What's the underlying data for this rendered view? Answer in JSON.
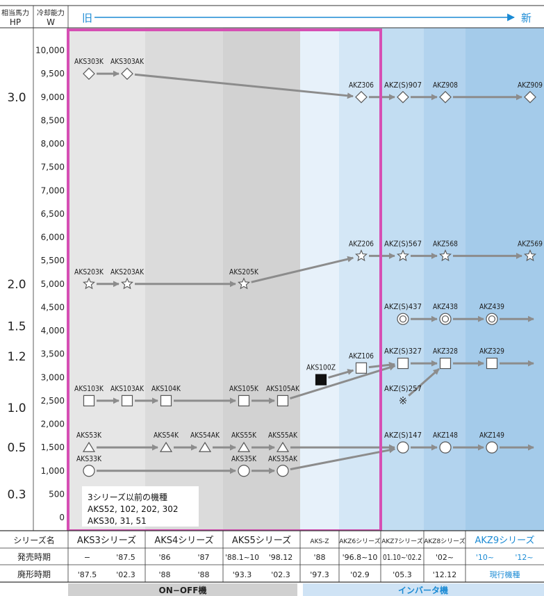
{
  "header": {
    "hp_label_1": "相当馬力",
    "hp_label_2": "HP",
    "w_label_1": "冷却能力",
    "w_label_2": "W",
    "old_label": "旧",
    "new_label": "新"
  },
  "y_axis_w": [
    "10,000",
    "9,500",
    "9,000",
    "8,500",
    "8,000",
    "7,500",
    "7,000",
    "6,500",
    "6,000",
    "5,500",
    "5,000",
    "4,500",
    "4,000",
    "3,500",
    "3,000",
    "2,500",
    "2,000",
    "1,500",
    "1,000",
    "500",
    "0"
  ],
  "y_axis_hp": [
    {
      "label": "3.0",
      "w": 9000
    },
    {
      "label": "2.0",
      "w": 5000
    },
    {
      "label": "1.5",
      "w": 4100
    },
    {
      "label": "1.2",
      "w": 3450
    },
    {
      "label": "1.0",
      "w": 2350
    },
    {
      "label": "0.5",
      "w": 1500
    },
    {
      "label": "0.3",
      "w": 500
    }
  ],
  "legacy_note": [
    "3シリーズ以前の機種",
    "AKS52, 102, 202, 302",
    "AKS30, 31, 51"
  ],
  "models": [
    {
      "id": "AKS303K",
      "label": "AKS303K",
      "shape": "diamond",
      "col": 0,
      "w": 9500
    },
    {
      "id": "AKS303AK",
      "label": "AKS303AK",
      "shape": "diamond",
      "col": 1,
      "w": 9500
    },
    {
      "id": "AKZ306",
      "label": "AKZ306",
      "shape": "diamond",
      "col": 7,
      "w": 9000
    },
    {
      "id": "AKZS907",
      "label": "AKZ(S)907",
      "shape": "diamond",
      "col": 8,
      "w": 9000
    },
    {
      "id": "AKZ908",
      "label": "AKZ908",
      "shape": "diamond",
      "col": 9,
      "w": 9000
    },
    {
      "id": "AKZ909",
      "label": "AKZ909",
      "shape": "diamond",
      "col": 11,
      "w": 9000
    },
    {
      "id": "AKS203K",
      "label": "AKS203K",
      "shape": "star",
      "col": 0,
      "w": 5000
    },
    {
      "id": "AKS203AK",
      "label": "AKS203AK",
      "shape": "star",
      "col": 1,
      "w": 5000
    },
    {
      "id": "AKS205K",
      "label": "AKS205K",
      "shape": "star",
      "col": 4,
      "w": 5000
    },
    {
      "id": "AKZ206",
      "label": "AKZ206",
      "shape": "star",
      "col": 7,
      "w": 5600
    },
    {
      "id": "AKZS567",
      "label": "AKZ(S)567",
      "shape": "star",
      "col": 8,
      "w": 5600
    },
    {
      "id": "AKZ568",
      "label": "AKZ568",
      "shape": "star",
      "col": 9,
      "w": 5600
    },
    {
      "id": "AKZ569",
      "label": "AKZ569",
      "shape": "star",
      "col": 11,
      "w": 5600
    },
    {
      "id": "AKZS437",
      "label": "AKZ(S)437",
      "shape": "dcircle",
      "col": 8,
      "w": 4250
    },
    {
      "id": "AKZ438",
      "label": "AKZ438",
      "shape": "dcircle",
      "col": 9,
      "w": 4250
    },
    {
      "id": "AKZ439",
      "label": "AKZ439",
      "shape": "dcircle",
      "col": 10,
      "w": 4250
    },
    {
      "id": "AKS100Z",
      "label": "AKS100Z",
      "shape": "fsquare",
      "col": 6,
      "w": 2950
    },
    {
      "id": "AKZ106",
      "label": "AKZ106",
      "shape": "square",
      "col": 7,
      "w": 3200
    },
    {
      "id": "AKZS327",
      "label": "AKZ(S)327",
      "shape": "square",
      "col": 8,
      "w": 3300
    },
    {
      "id": "AKZ328",
      "label": "AKZ328",
      "shape": "square",
      "col": 9,
      "w": 3300
    },
    {
      "id": "AKZ329",
      "label": "AKZ329",
      "shape": "square",
      "col": 10,
      "w": 3300
    },
    {
      "id": "AKZS257",
      "label": "AKZ(S)257",
      "shape": "kome",
      "col": 8,
      "w": 2500
    },
    {
      "id": "AKS103K",
      "label": "AKS103K",
      "shape": "square",
      "col": 0,
      "w": 2500
    },
    {
      "id": "AKS103AK",
      "label": "AKS103AK",
      "shape": "square",
      "col": 1,
      "w": 2500
    },
    {
      "id": "AKS104K",
      "label": "AKS104K",
      "shape": "square",
      "col": 2,
      "w": 2500
    },
    {
      "id": "AKS105K",
      "label": "AKS105K",
      "shape": "square",
      "col": 4,
      "w": 2500
    },
    {
      "id": "AKS105AK",
      "label": "AKS105AK",
      "shape": "square",
      "col": 5,
      "w": 2500
    },
    {
      "id": "AKS53K",
      "label": "AKS53K",
      "shape": "triangle",
      "col": 0,
      "w": 1500
    },
    {
      "id": "AKS54K",
      "label": "AKS54K",
      "shape": "triangle",
      "col": 2,
      "w": 1500
    },
    {
      "id": "AKS54AK",
      "label": "AKS54AK",
      "shape": "triangle",
      "col": 3,
      "w": 1500
    },
    {
      "id": "AKS55K",
      "label": "AKS55K",
      "shape": "triangle",
      "col": 4,
      "w": 1500
    },
    {
      "id": "AKS55AK",
      "label": "AKS55AK",
      "shape": "triangle",
      "col": 5,
      "w": 1500
    },
    {
      "id": "AKZS147",
      "label": "AKZ(S)147",
      "shape": "circle",
      "col": 8,
      "w": 1500
    },
    {
      "id": "AKZ148",
      "label": "AKZ148",
      "shape": "circle",
      "col": 9,
      "w": 1500
    },
    {
      "id": "AKZ149",
      "label": "AKZ149",
      "shape": "circle",
      "col": 10,
      "w": 1500
    },
    {
      "id": "AKS33K",
      "label": "AKS33K",
      "shape": "circle",
      "col": 0,
      "w": 1000
    },
    {
      "id": "AKS35K",
      "label": "AKS35K",
      "shape": "circle",
      "col": 4,
      "w": 1000
    },
    {
      "id": "AKS35AK",
      "label": "AKS35AK",
      "shape": "circle",
      "col": 5,
      "w": 1000
    }
  ],
  "links": [
    [
      "AKS303K",
      "AKS303AK"
    ],
    [
      "AKS303AK",
      "AKZ306"
    ],
    [
      "AKZ306",
      "AKZS907"
    ],
    [
      "AKZS907",
      "AKZ908"
    ],
    [
      "AKZ908",
      "AKZ909"
    ],
    [
      "AKS203K",
      "AKS203AK"
    ],
    [
      "AKS203AK",
      "AKS205K"
    ],
    [
      "AKS205K",
      "AKZ206"
    ],
    [
      "AKZ206",
      "AKZS567"
    ],
    [
      "AKZS567",
      "AKZ568"
    ],
    [
      "AKZ568",
      "AKZ569"
    ],
    [
      "AKZS437",
      "AKZ438"
    ],
    [
      "AKZ438",
      "AKZ439"
    ],
    [
      "AKZ439",
      "END"
    ],
    [
      "AKS100Z",
      "AKZ106"
    ],
    [
      "AKZ106",
      "AKZS327"
    ],
    [
      "AKZS327",
      "AKZ328"
    ],
    [
      "AKZ328",
      "AKZ329"
    ],
    [
      "AKZ329",
      "END"
    ],
    [
      "AKZS257",
      "AKZ328"
    ],
    [
      "AKS103K",
      "AKS103AK"
    ],
    [
      "AKS103AK",
      "AKS104K"
    ],
    [
      "AKS104K",
      "AKS105K"
    ],
    [
      "AKS105K",
      "AKS105AK"
    ],
    [
      "AKS105AK",
      "AKZS327"
    ],
    [
      "AKS53K",
      "AKS54K"
    ],
    [
      "AKS54K",
      "AKS54AK"
    ],
    [
      "AKS54AK",
      "AKS55K"
    ],
    [
      "AKS55K",
      "AKS55AK"
    ],
    [
      "AKS55AK",
      "AKZS147"
    ],
    [
      "AKZS147",
      "AKZ148"
    ],
    [
      "AKZ148",
      "AKZ149"
    ],
    [
      "AKZ149",
      "END"
    ],
    [
      "AKS33K",
      "AKS35K"
    ],
    [
      "AKS35K",
      "AKS35AK"
    ],
    [
      "AKS35AK",
      "AKZS147"
    ]
  ],
  "table": {
    "row_labels": [
      "シリーズ名",
      "発売時期",
      "廃形時期"
    ],
    "series": [
      {
        "name": "AKS3シリーズ",
        "blue": false
      },
      {
        "name": "AKS4シリーズ",
        "blue": false
      },
      {
        "name": "AKS5シリーズ",
        "blue": false
      },
      {
        "name": "AKS-Z",
        "blue": false
      },
      {
        "name": "AKZ6シリーズ",
        "blue": false
      },
      {
        "name": "AKZ7シリーズ",
        "blue": false
      },
      {
        "name": "AKZ8シリーズ",
        "blue": false
      },
      {
        "name": "AKZ9シリーズ",
        "blue": true
      }
    ],
    "release": [
      "−",
      "'87.5",
      "'86",
      "'87",
      "'88.1~10",
      "'98.12",
      "'88",
      "'96.8~10",
      "01.10~'02.2",
      "'02~",
      "'10~",
      "'12~"
    ],
    "discontinued": [
      "'87.5",
      "'02.3",
      "'88",
      "'88",
      "'93.3",
      "'02.3",
      "'97.3",
      "'02.9",
      "'05.3",
      "'12.12",
      "現行機種"
    ]
  },
  "footer": {
    "onoff_label": "ON−OFF機",
    "inverter_label": "インバータ機"
  },
  "colors": {
    "accent": "#1a8ad4",
    "highlight": "#d64fb4",
    "arrow": "#8c8c8c"
  }
}
